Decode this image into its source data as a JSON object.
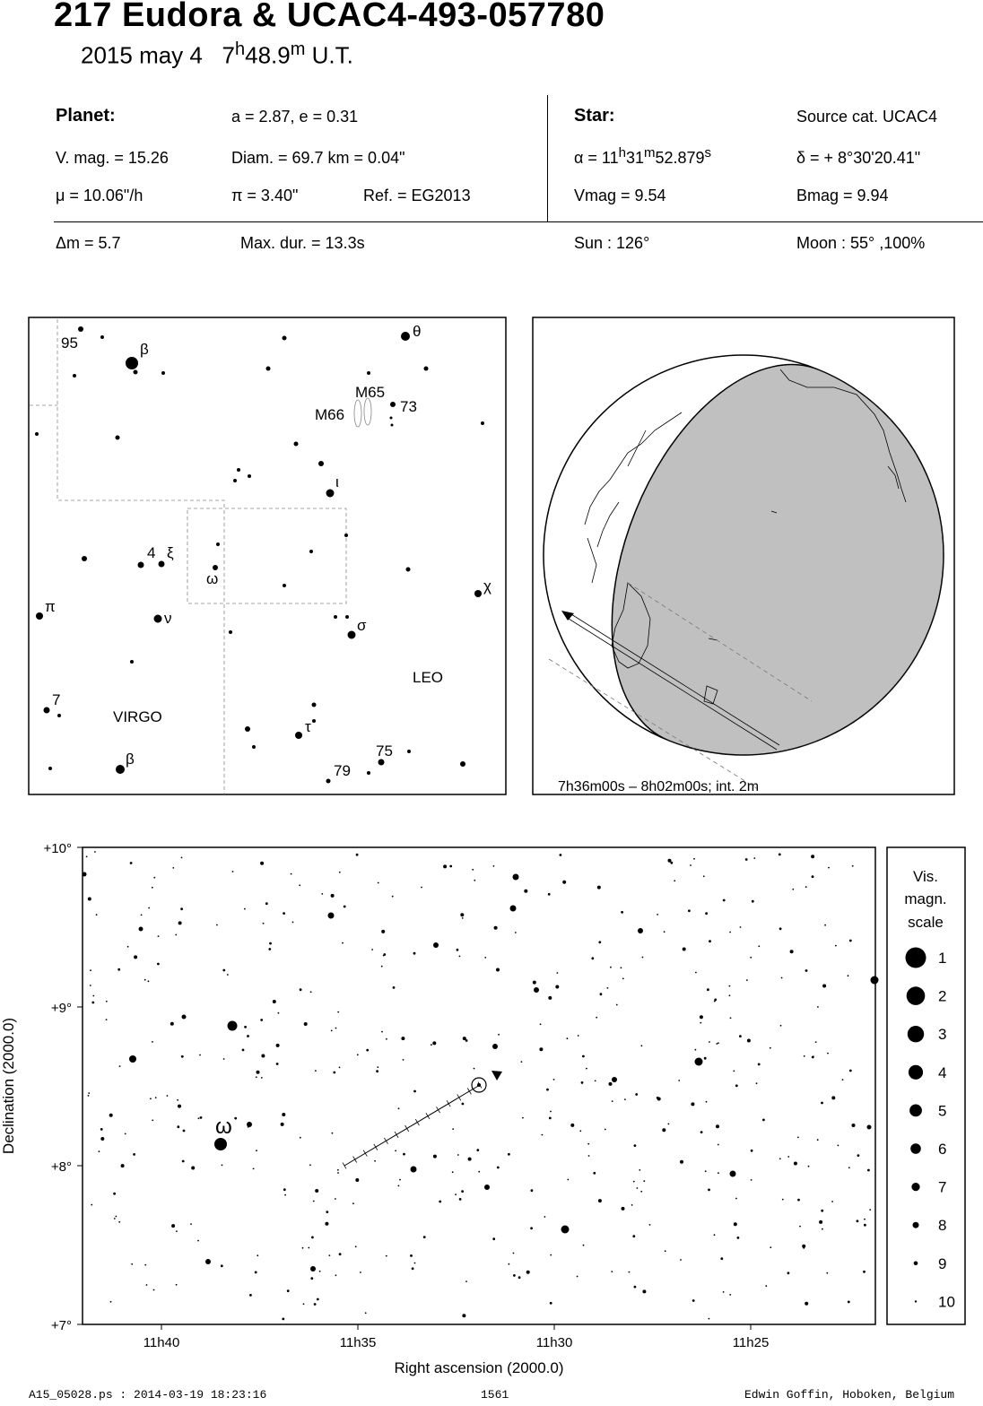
{
  "header": {
    "title": "217 Eudora  &  UCAC4-493-057780",
    "date": "2015 may  4",
    "time_hour": "7",
    "time_h_sup": "h",
    "time_min": "48.9",
    "time_m_sup": "m",
    "time_suffix": "U.T."
  },
  "info": {
    "planet_label": "Planet:",
    "orbit": "a = 2.87, e = 0.31",
    "vmag": "V. mag. = 15.26",
    "diam": "Diam. = 69.7 km = 0.04\"",
    "mu": "μ =  10.06\"/h",
    "parallax": "π =  3.40\"",
    "ref": "Ref. = EG2013",
    "star_label": "Star:",
    "source": "Source cat.  UCAC4",
    "ra_prefix": "α = 11",
    "ra_h": "h",
    "ra_min": "31",
    "ra_m": "m",
    "ra_sec": "52.879",
    "ra_s": "s",
    "dec": "δ = + 8°30'20.41\"",
    "star_vmag": "Vmag =  9.54",
    "star_bmag": "Bmag =  9.94",
    "delta_m": "Δm = 5.7",
    "max_dur": "Max. dur. = 13.3s",
    "sun": "Sun : 126°",
    "moon": "Moon :  55° ,100%"
  },
  "finder_chart": {
    "labels": {
      "n95": "95",
      "beta_top": "β",
      "theta": "θ",
      "m65": "M65",
      "m66": "M66",
      "n73": "73",
      "iota": "ι",
      "n4": "4",
      "xi": "ξ",
      "omega": "ω",
      "chi": "χ",
      "pi": "π",
      "nu": "ν",
      "sigma": "σ",
      "leo": "LEO",
      "n7": "7",
      "virgo": "VIRGO",
      "tau": "τ",
      "n75": "75",
      "beta_bottom": "β",
      "n79": "79"
    }
  },
  "globe": {
    "caption": "7h36m00s –  8h02m00s; int.  2m",
    "colors": {
      "night": "#c0c0c0",
      "day": "#ffffff"
    }
  },
  "star_chart": {
    "y_ticks": [
      "+10°",
      "+9°",
      "+8°",
      "+7°"
    ],
    "x_ticks": [
      "11h40",
      "11h35",
      "11h30",
      "11h25"
    ],
    "ylabel": "Declination (2000.0)",
    "xlabel": "Right ascension (2000.0)",
    "omega_label": "ω"
  },
  "legend": {
    "title_line1": "Vis.",
    "title_line2": "magn.",
    "title_line3": "scale",
    "magnitudes": [
      "1",
      "2",
      "3",
      "4",
      "5",
      "6",
      "7",
      "8",
      "9",
      "10"
    ]
  },
  "footer": {
    "left": "A15_05028.ps : 2014-03-19 18:23:16",
    "center": "1561",
    "right": "Edwin Goffin, Hoboken, Belgium"
  }
}
